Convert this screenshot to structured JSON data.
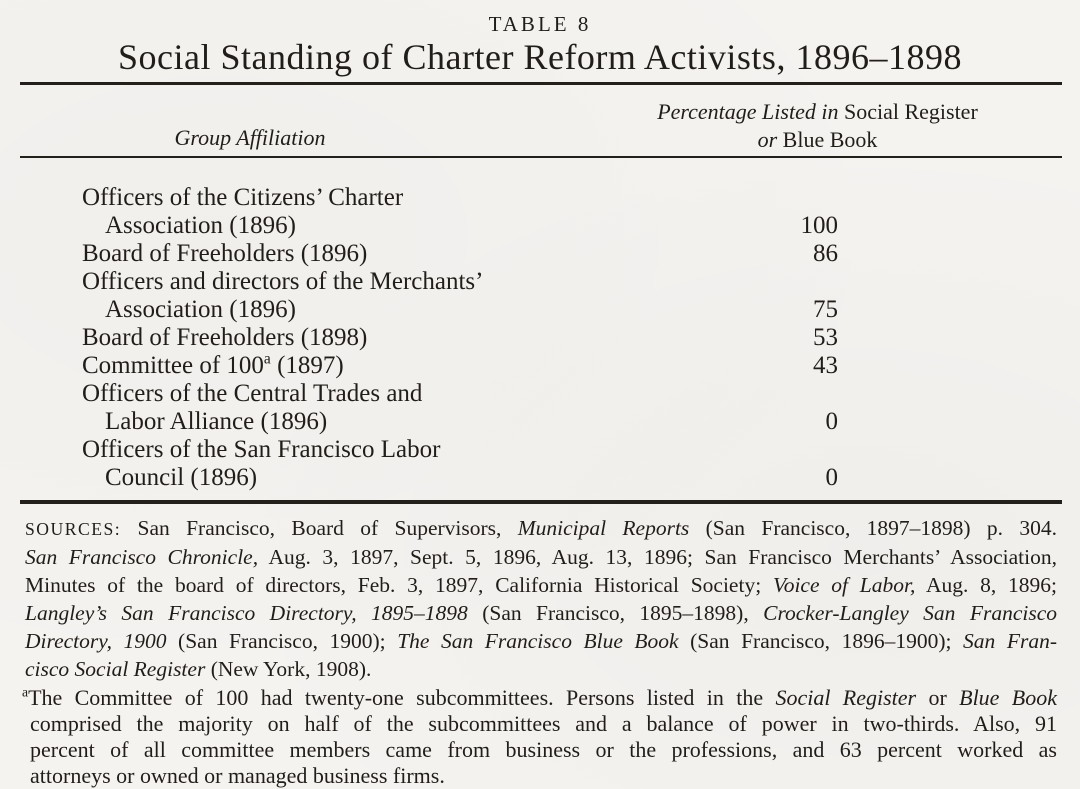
{
  "colors": {
    "ink": "#211e1a",
    "paper": "#f5f3f0"
  },
  "page": {
    "table_label": "TABLE 8",
    "title": "Social Standing of Charter Reform Activists, 1896–1898"
  },
  "table": {
    "col1_header": "Group Affiliation",
    "col2_header": [
      [
        {
          "text": "Percentage Listed in ",
          "italic": true
        },
        {
          "text": "Social Register"
        }
      ],
      [
        {
          "text": "or ",
          "italic": true
        },
        {
          "text": "Blue Book"
        }
      ]
    ],
    "rows": [
      {
        "lines": [
          "Officers of the Citizens’ Charter",
          "Association (1896)"
        ],
        "value": "100"
      },
      {
        "lines": [
          "Board of Freeholders (1896)"
        ],
        "value": "86"
      },
      {
        "lines": [
          "Officers and directors of the Merchants’",
          "Association (1896)"
        ],
        "value": "75"
      },
      {
        "lines": [
          "Board of Freeholders (1898)"
        ],
        "value": "53"
      },
      {
        "line_rich": [
          {
            "text": "Committee of 100"
          },
          {
            "text": "a",
            "sup": true
          },
          {
            "text": " (1897)"
          }
        ],
        "value": "43"
      },
      {
        "lines": [
          "Officers of the Central Trades and",
          "Labor Alliance (1896)"
        ],
        "value": "0"
      },
      {
        "lines": [
          "Officers of the San Francisco Labor",
          "Council (1896)"
        ],
        "value": "0"
      }
    ]
  },
  "sources": {
    "lines": [
      [
        {
          "text": "SOURCES:",
          "caps": true
        },
        {
          "text": "  San Francisco, Board of Supervisors, "
        },
        {
          "text": "Municipal Reports",
          "italic": true
        },
        {
          "text": " (San Francisco, 1897–1898) p. 304."
        }
      ],
      [
        {
          "text": "San Francisco Chronicle,",
          "italic": true
        },
        {
          "text": " Aug. 3, 1897, Sept. 5, 1896, Aug. 13, 1896; San Francisco Merchants’ Association,"
        }
      ],
      [
        {
          "text": "Minutes of the board of directors, Feb. 3, 1897, California Historical Society; "
        },
        {
          "text": "Voice of Labor,",
          "italic": true
        },
        {
          "text": " Aug. 8, 1896;"
        }
      ],
      [
        {
          "text": "Langley’s San Francisco Directory, 1895–1898",
          "italic": true
        },
        {
          "text": " (San Francisco, 1895–1898), "
        },
        {
          "text": "Crocker-Langley San Francisco",
          "italic": true
        }
      ],
      [
        {
          "text": "Directory, 1900",
          "italic": true
        },
        {
          "text": " (San Francisco, 1900); "
        },
        {
          "text": "The San Francisco Blue Book",
          "italic": true
        },
        {
          "text": " (San Francisco, 1896–1900); "
        },
        {
          "text": "San Fran-",
          "italic": true
        }
      ],
      [
        {
          "text": "cisco Social Register",
          "italic": true
        },
        {
          "text": " (New York, 1908)."
        }
      ]
    ]
  },
  "footnote": {
    "lines": [
      [
        {
          "text": "a",
          "sup": true
        },
        {
          "text": "The Committee of 100 had twenty-one subcommittees. Persons listed in the "
        },
        {
          "text": "Social Register",
          "italic": true
        },
        {
          "text": " or "
        },
        {
          "text": "Blue Book",
          "italic": true
        }
      ],
      [
        {
          "text": "comprised the majority on half of the subcommittees and a balance of power in two-thirds. Also, 91"
        }
      ],
      [
        {
          "text": "percent of all committee members came from business or the professions, and 63 percent worked as"
        }
      ],
      [
        {
          "text": "attorneys or owned or managed business firms."
        }
      ]
    ]
  }
}
